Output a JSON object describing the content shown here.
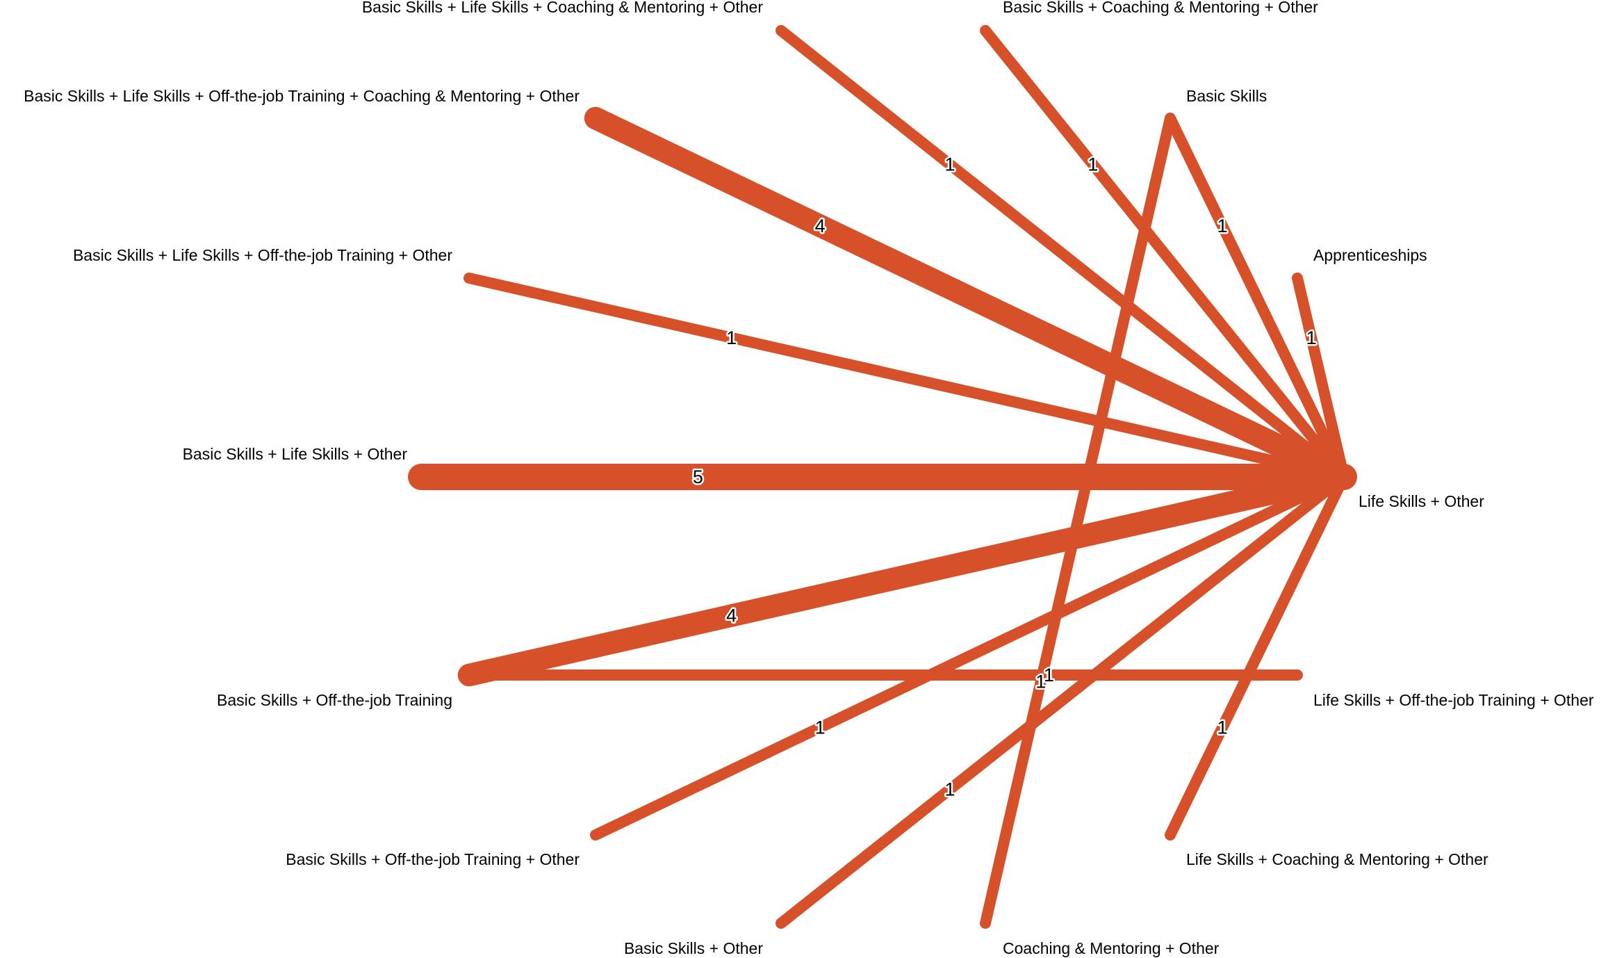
{
  "edge_color": "#d6512a",
  "label_color": "#000000",
  "nodes": [
    {
      "id": "lso",
      "label": "Life Skills + Other"
    },
    {
      "id": "app",
      "label": "Apprenticeships"
    },
    {
      "id": "bs",
      "label": "Basic Skills"
    },
    {
      "id": "bscmo",
      "label": "Basic Skills + Coaching & Mentoring + Other"
    },
    {
      "id": "bslscmo",
      "label": "Basic Skills + Life Skills + Coaching & Mentoring + Other"
    },
    {
      "id": "bslsojtcmo",
      "label": "Basic Skills + Life Skills + Off-the-job Training + Coaching & Mentoring + Other"
    },
    {
      "id": "bslsojto",
      "label": "Basic Skills + Life Skills + Off-the-job Training + Other"
    },
    {
      "id": "bslso",
      "label": "Basic Skills + Life Skills + Other"
    },
    {
      "id": "bsojt",
      "label": "Basic Skills + Off-the-job Training"
    },
    {
      "id": "bsojto",
      "label": "Basic Skills + Off-the-job Training + Other"
    },
    {
      "id": "bso",
      "label": "Basic Skills + Other"
    },
    {
      "id": "cmo",
      "label": "Coaching & Mentoring + Other"
    },
    {
      "id": "lscmo",
      "label": "Life Skills + Coaching & Mentoring + Other"
    },
    {
      "id": "lsojto",
      "label": "Life Skills + Off-the-job Training + Other"
    }
  ],
  "edges": [
    {
      "from": "lso",
      "to": "bslso",
      "weight": 5
    },
    {
      "from": "lso",
      "to": "bslsojtcmo",
      "weight": 4
    },
    {
      "from": "lso",
      "to": "bsojt",
      "weight": 4
    },
    {
      "from": "lso",
      "to": "bslscmo",
      "weight": 1
    },
    {
      "from": "lso",
      "to": "bscmo",
      "weight": 1
    },
    {
      "from": "lso",
      "to": "bs",
      "weight": 1
    },
    {
      "from": "lso",
      "to": "app",
      "weight": 1
    },
    {
      "from": "lso",
      "to": "bslsojto",
      "weight": 1
    },
    {
      "from": "lso",
      "to": "bsojto",
      "weight": 1
    },
    {
      "from": "lso",
      "to": "bso",
      "weight": 1
    },
    {
      "from": "lso",
      "to": "lscmo",
      "weight": 1
    },
    {
      "from": "bs",
      "to": "cmo",
      "weight": 1
    },
    {
      "from": "bsojt",
      "to": "lsojto",
      "weight": 1
    }
  ]
}
